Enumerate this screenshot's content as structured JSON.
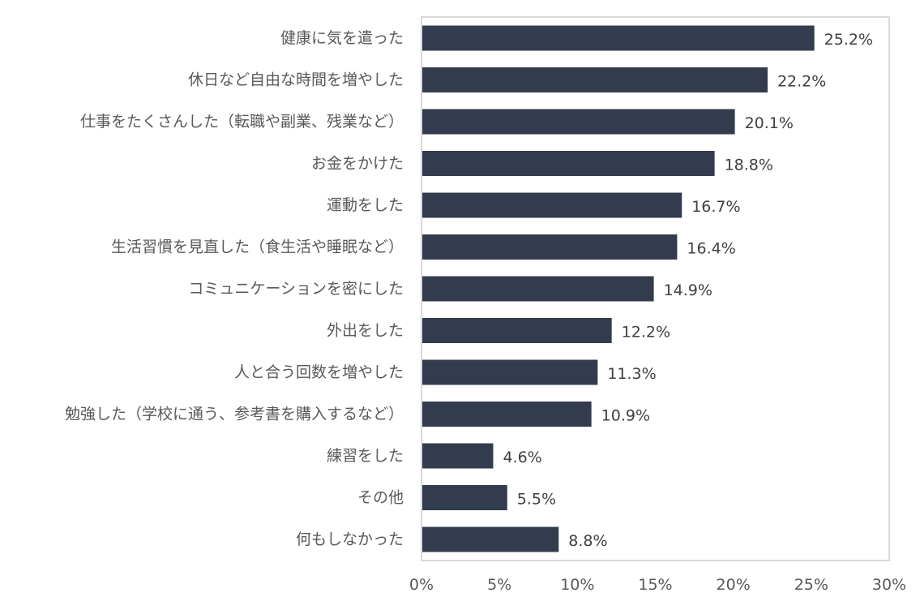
{
  "chart_data": {
    "type": "bar",
    "orientation": "horizontal",
    "categories": [
      "健康に気を遣った",
      "休日など自由な時間を増やした",
      "仕事をたくさんした（転職や副業、残業など）",
      "お金をかけた",
      "運動をした",
      "生活習慣を見直した（食生活や睡眠など）",
      "コミュニケーションを密にした",
      "外出をした",
      "人と合う回数を増やした",
      "勉強した（学校に通う、参考書を購入するなど）",
      "練習をした",
      "その他",
      "何もしなかった"
    ],
    "values": [
      25.2,
      22.2,
      20.1,
      18.8,
      16.7,
      16.4,
      14.9,
      12.2,
      11.3,
      10.9,
      4.6,
      5.5,
      8.8
    ],
    "data_labels": [
      "25.2%",
      "22.2%",
      "20.1%",
      "18.8%",
      "16.7%",
      "16.4%",
      "14.9%",
      "12.2%",
      "11.3%",
      "10.9%",
      "4.6%",
      "5.5%",
      "8.8%"
    ],
    "xlim": [
      0,
      30
    ],
    "x_ticks": [
      0,
      5,
      10,
      15,
      20,
      25,
      30
    ],
    "x_tick_labels": [
      "0%",
      "5%",
      "10%",
      "15%",
      "20%",
      "25%",
      "30%"
    ],
    "title": "",
    "xlabel": "",
    "ylabel": "",
    "grid": false,
    "legend": "none",
    "bar_color": "#333c4e",
    "plot_border_color": "#d9d9d9"
  }
}
